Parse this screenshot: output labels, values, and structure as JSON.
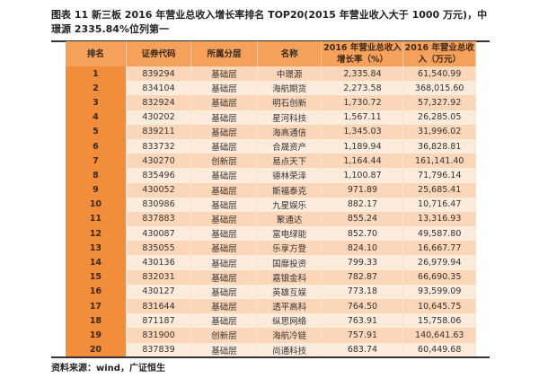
{
  "title": "图表 11 新三板 2016 年营业总收入增长率排名 TOP20(2015 年营业收入大于 1000 万元)，中璟源 2335.84%位列第一",
  "headers": [
    "排名",
    "证券代码",
    "所属分层",
    "名称",
    "2016 年营业总收入增长率（%）",
    "2016 年营业总收入（万元）"
  ],
  "rows": [
    [
      "1",
      "839294",
      "基础层",
      "中璟源",
      "2,335.84",
      "61,540.99"
    ],
    [
      "2",
      "834104",
      "基础层",
      "海航期货",
      "2,273.58",
      "368,015.60"
    ],
    [
      "3",
      "832924",
      "基础层",
      "明石创新",
      "1,730.72",
      "57,327.92"
    ],
    [
      "4",
      "430202",
      "基础层",
      "星河科技",
      "1,567.11",
      "26,285.05"
    ],
    [
      "5",
      "839211",
      "基础层",
      "海高通信",
      "1,345.03",
      "31,996.02"
    ],
    [
      "6",
      "833732",
      "基础层",
      "合晟资产",
      "1,189.94",
      "36,828.81"
    ],
    [
      "7",
      "430270",
      "创新层",
      "易点天下",
      "1,164.44",
      "161,141.40"
    ],
    [
      "8",
      "835496",
      "基础层",
      "德林荣泽",
      "1,100.87",
      "71,796.14"
    ],
    [
      "9",
      "430052",
      "基础层",
      "斯福泰克",
      "971.89",
      "25,685.41"
    ],
    [
      "10",
      "830986",
      "基础层",
      "九星娱乐",
      "882.17",
      "10,716.47"
    ],
    [
      "11",
      "837883",
      "基础层",
      "聚通达",
      "855.24",
      "13,316.93"
    ],
    [
      "12",
      "430087",
      "基础层",
      "富电绿能",
      "852.70",
      "49,587.80"
    ],
    [
      "13",
      "835055",
      "基础层",
      "乐享方登",
      "824.10",
      "16,667.77"
    ],
    [
      "14",
      "430136",
      "基础层",
      "国靡投资",
      "799.33",
      "26,979.94"
    ],
    [
      "15",
      "832031",
      "基础层",
      "嘉银金科",
      "782.87",
      "66,690.35"
    ],
    [
      "16",
      "430127",
      "基础层",
      "英雄互娱",
      "773.18",
      "93,599.09"
    ],
    [
      "17",
      "831644",
      "基础层",
      "透平高科",
      "764.50",
      "10,645.75"
    ],
    [
      "18",
      "871187",
      "基础层",
      "纵思网络",
      "763.91",
      "15,758.06"
    ],
    [
      "19",
      "831900",
      "创新层",
      "海航冷链",
      "757.91",
      "140,641.63"
    ],
    [
      "20",
      "837839",
      "基础层",
      "尚通科技",
      "683.74",
      "60,449.68"
    ]
  ],
  "source": "资料来源：wind，广证恒生"
}
